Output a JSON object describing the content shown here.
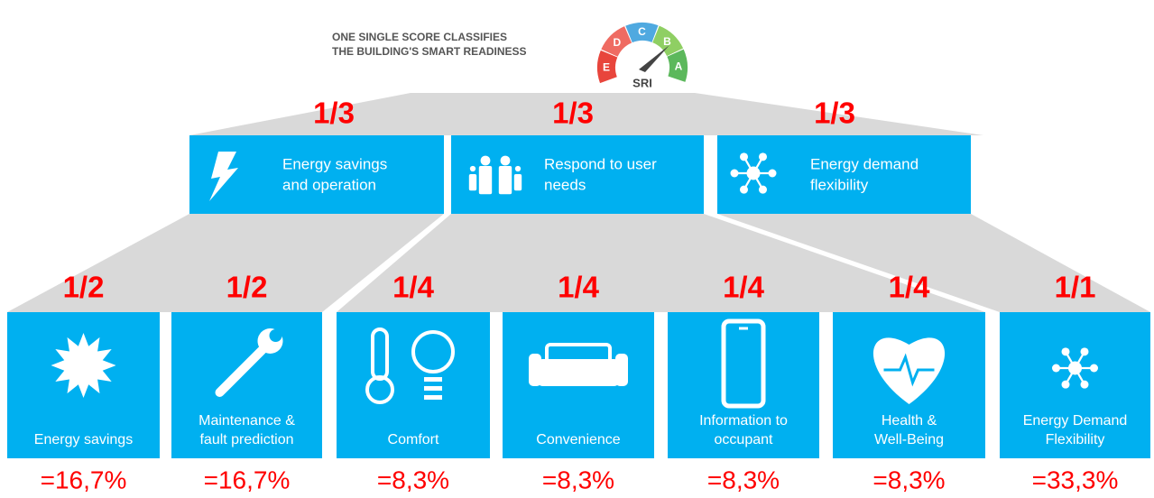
{
  "header": {
    "lines": [
      "ONE SINGLE SCORE CLASSIFIES",
      "THE BUILDING'S SMART READINESS"
    ]
  },
  "gauge": {
    "letters": [
      "E",
      "D",
      "C",
      "B",
      "A"
    ],
    "label": "SRI"
  },
  "domains": [
    {
      "weight": "1/3",
      "label": [
        "Energy savings",
        "and operation"
      ]
    },
    {
      "weight": "1/3",
      "label": [
        "Respond to user",
        "needs"
      ]
    },
    {
      "weight": "1/3",
      "label": [
        "Energy demand",
        "flexibility"
      ]
    }
  ],
  "subdomains": [
    {
      "weight": "1/2",
      "label": [
        "Energy savings"
      ],
      "share": "=16,7%"
    },
    {
      "weight": "1/2",
      "label": [
        "Maintenance &",
        "fault prediction"
      ],
      "share": "=16,7%"
    },
    {
      "weight": "1/4",
      "label": [
        "Comfort"
      ],
      "share": "=8,3%"
    },
    {
      "weight": "1/4",
      "label": [
        "Convenience"
      ],
      "share": "=8,3%"
    },
    {
      "weight": "1/4",
      "label": [
        "Information to",
        "occupant"
      ],
      "share": "=8,3%"
    },
    {
      "weight": "1/4",
      "label": [
        "Health &",
        "Well-Being"
      ],
      "share": "=8,3%"
    },
    {
      "weight": "1/1",
      "label": [
        "Energy Demand",
        "Flexibility"
      ],
      "share": "=33,3%"
    }
  ]
}
